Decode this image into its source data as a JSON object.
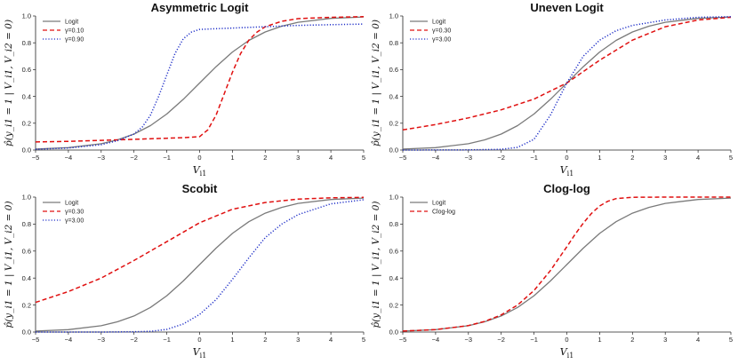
{
  "chart_data": [
    {
      "type": "line",
      "title": "Asymmetric Logit",
      "xlabel": "V_i1",
      "xlabel_main": "V",
      "xlabel_sub": "i1",
      "ylabel": "p̂(y_i1 = 1 | V_i1, V_i2 = 0)",
      "xlim": [
        -5,
        5
      ],
      "ylim": [
        0,
        1
      ],
      "xticks": [
        "−5",
        "−4",
        "−3",
        "−2",
        "−1",
        "0",
        "1",
        "2",
        "3",
        "4",
        "5"
      ],
      "yticks": [
        "0.0",
        "0.2",
        "0.4",
        "0.6",
        "0.8",
        "1.0"
      ],
      "legend": [
        "Logit",
        "γ=0.10",
        "γ=0.90"
      ],
      "series": [
        {
          "name": "Logit",
          "color": "#7a7a7a",
          "style": "solid",
          "x": [
            -5,
            -4,
            -3,
            -2.5,
            -2,
            -1.5,
            -1,
            -0.5,
            0,
            0.5,
            1,
            1.5,
            2,
            2.5,
            3,
            4,
            5
          ],
          "y": [
            0.007,
            0.018,
            0.047,
            0.076,
            0.119,
            0.182,
            0.269,
            0.378,
            0.5,
            0.622,
            0.731,
            0.818,
            0.881,
            0.924,
            0.953,
            0.982,
            0.993
          ]
        },
        {
          "name": "γ=0.10",
          "color": "#e01010",
          "style": "dashed",
          "x": [
            -5,
            -4,
            -3,
            -2,
            -1,
            -0.5,
            0,
            0.25,
            0.5,
            0.75,
            1,
            1.25,
            1.5,
            1.75,
            2,
            2.5,
            3,
            4,
            5
          ],
          "y": [
            0.06,
            0.065,
            0.072,
            0.08,
            0.088,
            0.092,
            0.1,
            0.15,
            0.26,
            0.42,
            0.58,
            0.72,
            0.82,
            0.88,
            0.92,
            0.96,
            0.98,
            0.99,
            0.995
          ]
        },
        {
          "name": "γ=0.90",
          "color": "#2030c8",
          "style": "dotted",
          "x": [
            -5,
            -4,
            -3,
            -2.5,
            -2,
            -1.75,
            -1.5,
            -1.25,
            -1,
            -0.75,
            -0.5,
            -0.25,
            0,
            1,
            2,
            3,
            4,
            5
          ],
          "y": [
            0.005,
            0.015,
            0.04,
            0.07,
            0.12,
            0.17,
            0.26,
            0.4,
            0.56,
            0.72,
            0.83,
            0.88,
            0.9,
            0.91,
            0.92,
            0.93,
            0.935,
            0.94
          ]
        }
      ]
    },
    {
      "type": "line",
      "title": "Uneven Logit",
      "xlabel": "V_i1",
      "xlabel_main": "V",
      "xlabel_sub": "i1",
      "ylabel": "p̂(y_i1 = 1 | V_i1, V_i2 = 0)",
      "xlim": [
        -5,
        5
      ],
      "ylim": [
        0,
        1
      ],
      "xticks": [
        "−5",
        "−4",
        "−3",
        "−2",
        "−1",
        "0",
        "1",
        "2",
        "3",
        "4",
        "5"
      ],
      "yticks": [
        "0.0",
        "0.2",
        "0.4",
        "0.6",
        "0.8",
        "1.0"
      ],
      "legend": [
        "Logit",
        "γ=0.30",
        "γ=3.00"
      ],
      "series": [
        {
          "name": "Logit",
          "color": "#7a7a7a",
          "style": "solid",
          "x": [
            -5,
            -4,
            -3,
            -2.5,
            -2,
            -1.5,
            -1,
            -0.5,
            0,
            0.5,
            1,
            1.5,
            2,
            2.5,
            3,
            4,
            5
          ],
          "y": [
            0.007,
            0.018,
            0.047,
            0.076,
            0.119,
            0.182,
            0.269,
            0.378,
            0.5,
            0.622,
            0.731,
            0.818,
            0.881,
            0.924,
            0.953,
            0.982,
            0.993
          ]
        },
        {
          "name": "γ=0.30",
          "color": "#e01010",
          "style": "dashed",
          "x": [
            -5,
            -4,
            -3,
            -2,
            -1,
            0,
            1,
            2,
            3,
            4,
            5
          ],
          "y": [
            0.15,
            0.19,
            0.24,
            0.3,
            0.38,
            0.5,
            0.67,
            0.82,
            0.92,
            0.97,
            0.99
          ]
        },
        {
          "name": "γ=3.00",
          "color": "#2030c8",
          "style": "dotted",
          "x": [
            -5,
            -3,
            -2,
            -1.5,
            -1,
            -0.5,
            0,
            0.5,
            1,
            1.5,
            2,
            3,
            4,
            5
          ],
          "y": [
            0.0,
            0.001,
            0.005,
            0.02,
            0.08,
            0.26,
            0.5,
            0.7,
            0.82,
            0.89,
            0.93,
            0.97,
            0.99,
            0.995
          ]
        }
      ]
    },
    {
      "type": "line",
      "title": "Scobit",
      "xlabel": "V_i1",
      "xlabel_main": "V",
      "xlabel_sub": "i1",
      "ylabel": "p̂(y_i1 = 1 | V_i1, V_i2 = 0)",
      "xlim": [
        -5,
        5
      ],
      "ylim": [
        0,
        1
      ],
      "xticks": [
        "−5",
        "−4",
        "−3",
        "−2",
        "−1",
        "0",
        "1",
        "2",
        "3",
        "4",
        "5"
      ],
      "yticks": [
        "0.0",
        "0.2",
        "0.4",
        "0.6",
        "0.8",
        "1.0"
      ],
      "legend": [
        "Logit",
        "γ=0.30",
        "γ=3.00"
      ],
      "series": [
        {
          "name": "Logit",
          "color": "#7a7a7a",
          "style": "solid",
          "x": [
            -5,
            -4,
            -3,
            -2.5,
            -2,
            -1.5,
            -1,
            -0.5,
            0,
            0.5,
            1,
            1.5,
            2,
            2.5,
            3,
            4,
            5
          ],
          "y": [
            0.007,
            0.018,
            0.047,
            0.076,
            0.119,
            0.182,
            0.269,
            0.378,
            0.5,
            0.622,
            0.731,
            0.818,
            0.881,
            0.924,
            0.953,
            0.982,
            0.993
          ]
        },
        {
          "name": "γ=0.30",
          "color": "#e01010",
          "style": "dashed",
          "x": [
            -5,
            -4,
            -3,
            -2,
            -1,
            0,
            1,
            2,
            3,
            4,
            5
          ],
          "y": [
            0.22,
            0.3,
            0.4,
            0.53,
            0.67,
            0.81,
            0.91,
            0.96,
            0.985,
            0.995,
            0.998
          ]
        },
        {
          "name": "γ=3.00",
          "color": "#2030c8",
          "style": "dotted",
          "x": [
            -5,
            -3,
            -2,
            -1.5,
            -1,
            -0.5,
            0,
            0.5,
            1,
            1.5,
            2,
            2.5,
            3,
            4,
            5
          ],
          "y": [
            0.0,
            0.0,
            0.002,
            0.005,
            0.02,
            0.06,
            0.13,
            0.24,
            0.39,
            0.55,
            0.7,
            0.8,
            0.87,
            0.95,
            0.98
          ]
        }
      ]
    },
    {
      "type": "line",
      "title": "Clog-log",
      "xlabel": "V_i1",
      "xlabel_main": "V",
      "xlabel_sub": "i1",
      "ylabel": "p̂(y_i1 = 1 | V_i1, V_i2 = 0)",
      "xlim": [
        -5,
        5
      ],
      "ylim": [
        0,
        1
      ],
      "xticks": [
        "−5",
        "−4",
        "−3",
        "−2",
        "−1",
        "0",
        "1",
        "2",
        "3",
        "4",
        "5"
      ],
      "yticks": [
        "0.0",
        "0.2",
        "0.4",
        "0.6",
        "0.8",
        "1.0"
      ],
      "legend": [
        "Logit",
        "Clog-log"
      ],
      "series": [
        {
          "name": "Logit",
          "color": "#7a7a7a",
          "style": "solid",
          "x": [
            -5,
            -4,
            -3,
            -2.5,
            -2,
            -1.5,
            -1,
            -0.5,
            0,
            0.5,
            1,
            1.5,
            2,
            2.5,
            3,
            4,
            5
          ],
          "y": [
            0.007,
            0.018,
            0.047,
            0.076,
            0.119,
            0.182,
            0.269,
            0.378,
            0.5,
            0.622,
            0.731,
            0.818,
            0.881,
            0.924,
            0.953,
            0.982,
            0.993
          ]
        },
        {
          "name": "Clog-log",
          "color": "#e01010",
          "style": "dashed",
          "x": [
            -5,
            -4,
            -3,
            -2.5,
            -2,
            -1.5,
            -1,
            -0.5,
            0,
            0.25,
            0.5,
            0.75,
            1,
            1.25,
            1.5,
            2,
            3,
            4,
            5
          ],
          "y": [
            0.007,
            0.018,
            0.048,
            0.079,
            0.127,
            0.2,
            0.308,
            0.455,
            0.632,
            0.723,
            0.807,
            0.879,
            0.934,
            0.969,
            0.989,
            0.999,
            1.0,
            1.0,
            1.0
          ]
        }
      ]
    }
  ]
}
